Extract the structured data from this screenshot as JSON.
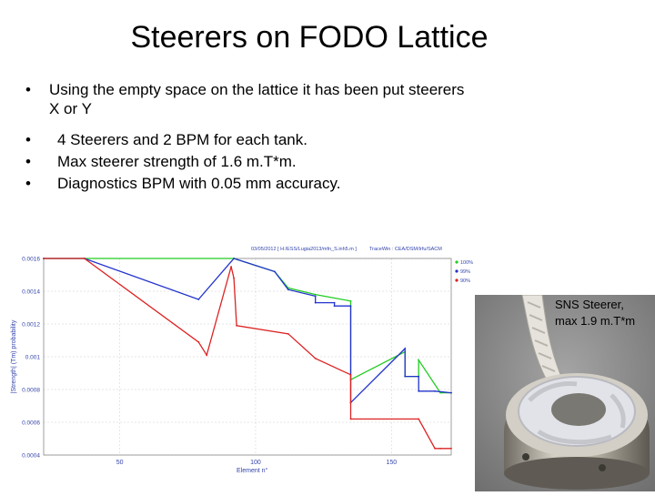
{
  "slide": {
    "title": "Steerers on FODO Lattice",
    "bullets": [
      "Using the empty space on the lattice it has been put steerers",
      "X or Y",
      "4 Steerers and 2 BPM for each tank.",
      "Max steerer strength of 1.6 m.T*m.",
      "Diagnostics BPM with 0.05 mm accuracy."
    ],
    "bullet_glyph": "•"
  },
  "chart_header": {
    "date_path": "03/05/2012 [ H:/ESS/Lugia2013/mfn_S.inh5.m ]",
    "tracewin_path": "TraceWin : CEA/DSM/Irfu/SACM"
  },
  "chart_data": {
    "type": "line",
    "xlabel": "Element n°",
    "ylabel": "|Strength| (Tm) probability",
    "xlim": [
      22,
      172
    ],
    "ylim": [
      0.0004,
      0.0016
    ],
    "xticks": [
      50,
      100,
      150
    ],
    "yticks": [
      0.0004,
      0.0006,
      0.0008,
      0.001,
      0.0012,
      0.0014,
      0.0016
    ],
    "ytick_labels": [
      "0.0004",
      "0.0006",
      "0.0008",
      "0.001",
      "0.0012",
      "0.0014",
      "0.0016"
    ],
    "grid": true,
    "legend_position": "top-right",
    "series": [
      {
        "name": "100%",
        "color": "#22cc22",
        "x": [
          22,
          37,
          92,
          107,
          112,
          122,
          135,
          135,
          155,
          155,
          160,
          160,
          168,
          172
        ],
        "y": [
          0.0016,
          0.0016,
          0.0016,
          0.00152,
          0.00142,
          0.00138,
          0.00134,
          0.00086,
          0.00103,
          0.00088,
          0.00088,
          0.00098,
          0.00078,
          0.00078
        ]
      },
      {
        "name": "99%",
        "color": "#2233cc",
        "x": [
          22,
          37,
          79,
          92,
          107,
          112,
          122,
          122,
          129,
          129,
          135,
          135,
          155,
          155,
          160,
          160,
          166,
          172
        ],
        "y": [
          0.0016,
          0.0016,
          0.00135,
          0.0016,
          0.00152,
          0.00141,
          0.00137,
          0.00133,
          0.00133,
          0.00131,
          0.00131,
          0.00072,
          0.00105,
          0.00088,
          0.00088,
          0.00079,
          0.00079,
          0.00078
        ]
      },
      {
        "name": "90%",
        "color": "#dd2222",
        "x": [
          22,
          37,
          79,
          82,
          91,
          92,
          93,
          112,
          122,
          135,
          135,
          160,
          166,
          168,
          172
        ],
        "y": [
          0.0016,
          0.0016,
          0.00109,
          0.00101,
          0.00155,
          0.00148,
          0.00119,
          0.00114,
          0.00099,
          0.00089,
          0.00062,
          0.00062,
          0.00044,
          0.00044,
          0.00044
        ]
      }
    ]
  },
  "photo": {
    "caption": "SNS Steerer,\nmax 1.9 m.T*m",
    "colors": {
      "metal": "#c9c4ba",
      "metal_dark": "#6e6a62",
      "tape": "#dcdde2",
      "cable": "#e9e6df",
      "bg": "#8b8b8b"
    }
  }
}
